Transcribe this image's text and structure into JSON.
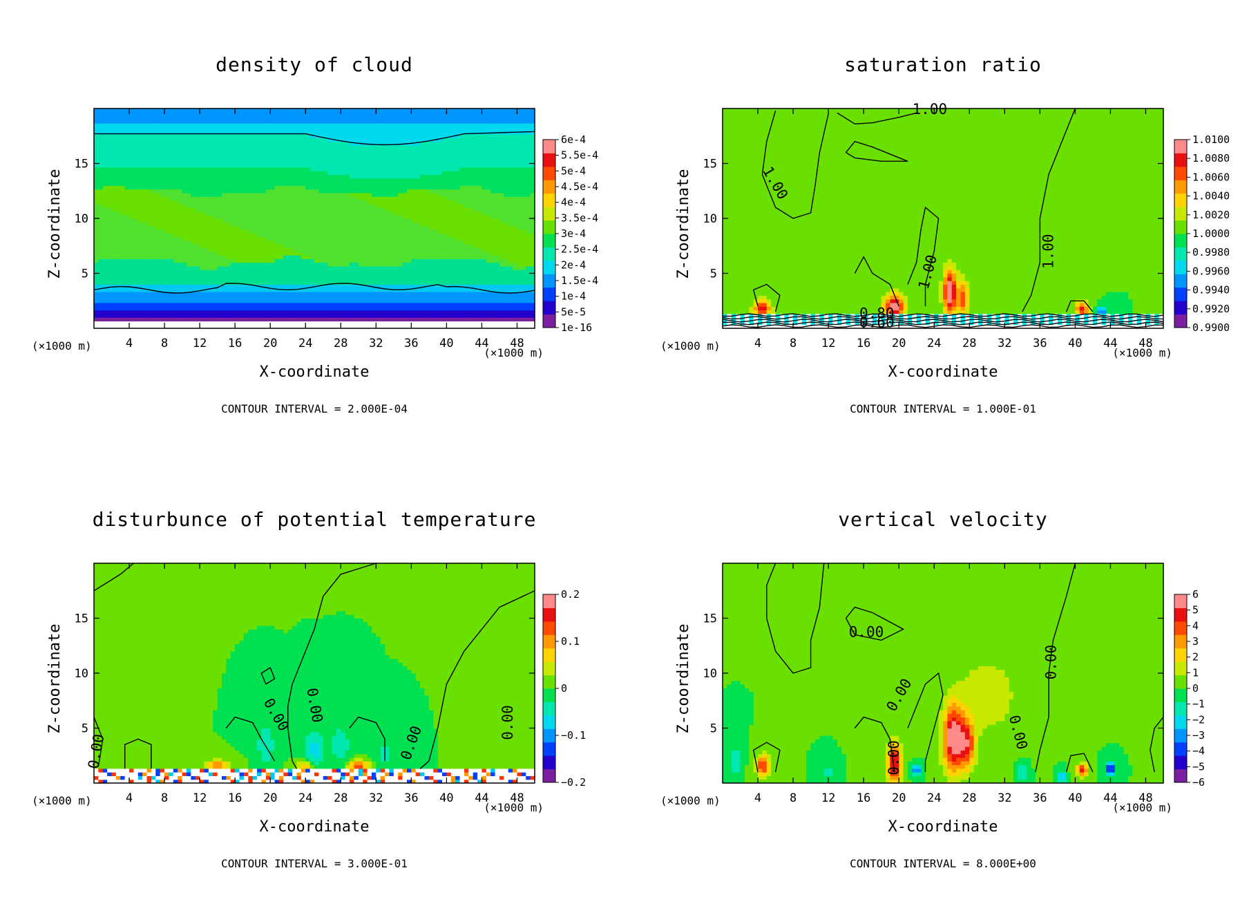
{
  "chart_data": [
    {
      "type": "heatmap",
      "title": "density of cloud",
      "xlabel": "X-coordinate",
      "ylabel": "Z-coordinate",
      "x_unit_left": "(×1000 m)",
      "x_unit_right": "(×1000 m)",
      "xlim": [
        0,
        50
      ],
      "ylim": [
        0,
        20
      ],
      "xticks": [
        "4",
        "8",
        "12",
        "16",
        "20",
        "24",
        "28",
        "32",
        "36",
        "40",
        "44",
        "48"
      ],
      "yticks": [
        "5",
        "10",
        "15"
      ],
      "colorbar_labels": [
        "6e-4",
        "5.5e-4",
        "5e-4",
        "4.5e-4",
        "4e-4",
        "3.5e-4",
        "3e-4",
        "2.5e-4",
        "2e-4",
        "1.5e-4",
        "1e-4",
        "5e-5",
        "1e-16"
      ],
      "contour_interval": "CONTOUR INTERVAL = 2.000E-04",
      "contour_labels": [],
      "field": "cloud"
    },
    {
      "type": "heatmap",
      "title": "saturation ratio",
      "xlabel": "X-coordinate",
      "ylabel": "Z-coordinate",
      "x_unit_left": "(×1000 m)",
      "x_unit_right": "(×1000 m)",
      "xlim": [
        0,
        50
      ],
      "ylim": [
        0,
        20
      ],
      "xticks": [
        "4",
        "8",
        "12",
        "16",
        "20",
        "24",
        "28",
        "32",
        "36",
        "40",
        "44",
        "48"
      ],
      "yticks": [
        "5",
        "10",
        "15"
      ],
      "colorbar_labels": [
        "1.0100",
        "1.0080",
        "1.0060",
        "1.0040",
        "1.0020",
        "1.0000",
        "0.9980",
        "0.9960",
        "0.9940",
        "0.9920",
        "0.9900"
      ],
      "contour_interval": "CONTOUR INTERVAL = 1.000E-01",
      "contour_labels": [
        {
          "text": "1.00",
          "x": 23.5,
          "z": 19.5,
          "rot": 0
        },
        {
          "text": "1.00",
          "x": 5.5,
          "z": 13.0,
          "rot": 60
        },
        {
          "text": "1.00",
          "x": 23.8,
          "z": 5.0,
          "rot": -75
        },
        {
          "text": "1.00",
          "x": 37.5,
          "z": 7.0,
          "rot": -90
        },
        {
          "text": "0.80",
          "x": 17.5,
          "z": 0.9,
          "rot": 0
        },
        {
          "text": "0.60",
          "x": 17.5,
          "z": 0.1,
          "rot": 0
        }
      ],
      "field": "saturation"
    },
    {
      "type": "heatmap",
      "title": "disturbunce of potential temperature",
      "xlabel": "X-coordinate",
      "ylabel": "Z-coordinate",
      "x_unit_left": "(×1000 m)",
      "x_unit_right": "(×1000 m)",
      "xlim": [
        0,
        50
      ],
      "ylim": [
        0,
        20
      ],
      "xticks": [
        "4",
        "8",
        "12",
        "16",
        "20",
        "24",
        "28",
        "32",
        "36",
        "40",
        "44",
        "48"
      ],
      "yticks": [
        "5",
        "10",
        "15"
      ],
      "colorbar_labels": [
        "0.2",
        "0.1",
        "0",
        "−0.1",
        "−0.2"
      ],
      "contour_interval": "CONTOUR INTERVAL = 3.000E-01",
      "contour_labels": [
        {
          "text": "0.00",
          "x": 0.8,
          "z": 2.8,
          "rot": -80
        },
        {
          "text": "0.00",
          "x": 20.2,
          "z": 6.0,
          "rot": 60
        },
        {
          "text": "0.00",
          "x": 24.5,
          "z": 7.0,
          "rot": 80
        },
        {
          "text": "0.00",
          "x": 36.5,
          "z": 3.5,
          "rot": -70
        },
        {
          "text": "0.00",
          "x": 47.5,
          "z": 5.5,
          "rot": -90
        }
      ],
      "field": "theta"
    },
    {
      "type": "heatmap",
      "title": "vertical velocity",
      "xlabel": "X-coordinate",
      "ylabel": "Z-coordinate",
      "x_unit_left": "(×1000 m)",
      "x_unit_right": "(×1000 m)",
      "xlim": [
        0,
        50
      ],
      "ylim": [
        0,
        20
      ],
      "xticks": [
        "4",
        "8",
        "12",
        "16",
        "20",
        "24",
        "28",
        "32",
        "36",
        "40",
        "44",
        "48"
      ],
      "yticks": [
        "5",
        "10",
        "15"
      ],
      "colorbar_labels": [
        "6",
        "5",
        "4",
        "3",
        "2",
        "1",
        "0",
        "−1",
        "−2",
        "−3",
        "−4",
        "−5",
        "−6"
      ],
      "contour_interval": "CONTOUR INTERVAL = 8.000E+00",
      "contour_labels": [
        {
          "text": "0.00",
          "x": 16.3,
          "z": 13.3,
          "rot": 0
        },
        {
          "text": "0.00",
          "x": 20.5,
          "z": 7.8,
          "rot": -60
        },
        {
          "text": "0.00",
          "x": 37.8,
          "z": 11.0,
          "rot": -90
        },
        {
          "text": "0.00",
          "x": 33.0,
          "z": 4.5,
          "rot": 75
        },
        {
          "text": "0.00",
          "x": 20.0,
          "z": 2.3,
          "rot": -90
        }
      ],
      "field": "velocity"
    }
  ]
}
